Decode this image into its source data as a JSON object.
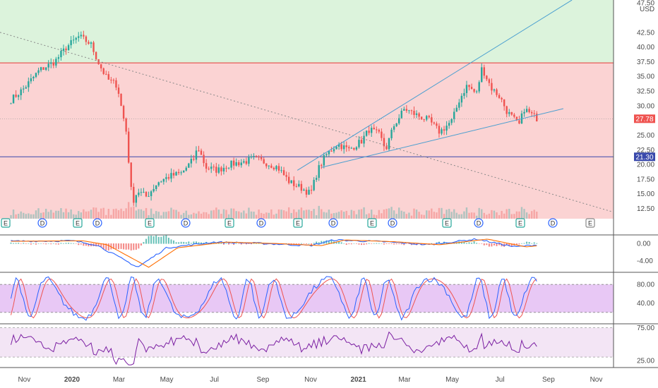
{
  "currency": "USD",
  "colors": {
    "up": "#26a69a",
    "down": "#ef5350",
    "resistance_zone": "#dcf3dc",
    "support_zone": "#fbd3d3",
    "resistance_line": "#e53935",
    "hline": "#3949ab",
    "trend": "#4a9fd0",
    "macd": "#2962ff",
    "signal": "#ff6d00",
    "stoch_k": "#2962ff",
    "stoch_d": "#ef5350",
    "stoch_band": "#e8c8f5",
    "rsi": "#7b1fa2",
    "rsi_band": "#f3e5f5",
    "last_price_label": "#ef5350",
    "hline_label": "#3949ab"
  },
  "time_axis": [
    "Nov",
    "2020",
    "Mar",
    "May",
    "Jul",
    "Sep",
    "Nov",
    "2021",
    "Mar",
    "May",
    "Jul",
    "Sep",
    "Nov"
  ],
  "price_axis": [
    "47.50",
    "42.50",
    "40.00",
    "37.50",
    "35.00",
    "32.50",
    "30.00",
    "25.00",
    "22.50",
    "20.00",
    "17.50",
    "15.00",
    "12.50"
  ],
  "last_price": "27.78",
  "hline_price": "21.30",
  "macd_axis": [
    "0.00",
    "-4.00"
  ],
  "stoch_axis": [
    "80.00",
    "40.00"
  ],
  "rsi_axis": [
    "75.00",
    "25.00"
  ],
  "event_markers": [
    "E",
    "D",
    "E",
    "D",
    "E",
    "D",
    "E",
    "D",
    "E",
    "D",
    "E",
    "D",
    "E",
    "D",
    "E",
    "D",
    "E"
  ],
  "chart_data": {
    "type": "candlestick",
    "x_start": "2019-10",
    "x_end": "2021-11",
    "ylim": [
      11,
      47.5
    ],
    "resistance_price": 37.3,
    "hline_price": 21.3,
    "last_price": 27.78,
    "price_path": [
      [
        "2019-10-15",
        31.0
      ],
      [
        "2019-11-01",
        33.0
      ],
      [
        "2019-11-20",
        36.0
      ],
      [
        "2019-12-10",
        37.5
      ],
      [
        "2019-12-25",
        40.0
      ],
      [
        "2020-01-10",
        41.8
      ],
      [
        "2020-01-25",
        40.5
      ],
      [
        "2020-02-05",
        37.0
      ],
      [
        "2020-02-15",
        34.5
      ],
      [
        "2020-02-28",
        33.5
      ],
      [
        "2020-03-05",
        29.0
      ],
      [
        "2020-03-10",
        26.0
      ],
      [
        "2020-03-18",
        13.5
      ],
      [
        "2020-03-25",
        15.5
      ],
      [
        "2020-04-05",
        14.5
      ],
      [
        "2020-04-20",
        17.0
      ],
      [
        "2020-05-05",
        18.0
      ],
      [
        "2020-05-20",
        18.5
      ],
      [
        "2020-06-05",
        21.0
      ],
      [
        "2020-06-10",
        23.0
      ],
      [
        "2020-06-20",
        19.5
      ],
      [
        "2020-07-05",
        19.0
      ],
      [
        "2020-07-20",
        20.0
      ],
      [
        "2020-08-10",
        20.5
      ],
      [
        "2020-08-20",
        21.0
      ],
      [
        "2020-09-01",
        20.5
      ],
      [
        "2020-09-20",
        19.5
      ],
      [
        "2020-10-05",
        17.0
      ],
      [
        "2020-10-20",
        16.0
      ],
      [
        "2020-11-01",
        15.0
      ],
      [
        "2020-11-10",
        19.0
      ],
      [
        "2020-11-20",
        21.5
      ],
      [
        "2020-12-05",
        23.5
      ],
      [
        "2020-12-20",
        22.5
      ],
      [
        "2021-01-05",
        24.0
      ],
      [
        "2021-01-15",
        26.0
      ],
      [
        "2021-01-28",
        25.0
      ],
      [
        "2021-02-05",
        22.5
      ],
      [
        "2021-02-15",
        26.5
      ],
      [
        "2021-03-01",
        29.5
      ],
      [
        "2021-03-15",
        28.5
      ],
      [
        "2021-04-01",
        27.5
      ],
      [
        "2021-04-15",
        25.5
      ],
      [
        "2021-05-01",
        27.5
      ],
      [
        "2021-05-10",
        31.0
      ],
      [
        "2021-05-20",
        33.5
      ],
      [
        "2021-06-01",
        32.0
      ],
      [
        "2021-06-08",
        36.5
      ],
      [
        "2021-06-20",
        33.0
      ],
      [
        "2021-07-01",
        31.5
      ],
      [
        "2021-07-10",
        29.0
      ],
      [
        "2021-07-20",
        27.5
      ],
      [
        "2021-07-25",
        26.5
      ],
      [
        "2021-08-01",
        29.5
      ],
      [
        "2021-08-10",
        28.5
      ],
      [
        "2021-08-18",
        27.8
      ]
    ],
    "trendlines": [
      {
        "name": "descending-dotted",
        "from": [
          "2019-10-01",
          42.5
        ],
        "to": [
          "2021-11-20",
          12.0
        ],
        "style": "dotted"
      },
      {
        "name": "channel-upper",
        "from": [
          "2020-10-15",
          19.0
        ],
        "to": [
          "2021-10-01",
          48.0
        ],
        "style": "solid"
      },
      {
        "name": "channel-lower",
        "from": [
          "2020-11-15",
          19.5
        ],
        "to": [
          "2021-09-20",
          29.5
        ],
        "style": "solid"
      }
    ],
    "indicators": {
      "macd": {
        "ylim": [
          -6.5,
          1.8
        ],
        "path": [
          [
            "2019-10",
            0.5
          ],
          [
            "2020-01",
            0.6
          ],
          [
            "2020-02",
            -0.3
          ],
          [
            "2020-03-25",
            -5.5
          ],
          [
            "2020-05",
            -1.0
          ],
          [
            "2020-07",
            0.3
          ],
          [
            "2020-09",
            0.0
          ],
          [
            "2020-11",
            -0.5
          ],
          [
            "2020-12",
            0.8
          ],
          [
            "2021-02",
            0.4
          ],
          [
            "2021-04",
            -0.3
          ],
          [
            "2021-06",
            1.0
          ],
          [
            "2021-07-20",
            -0.8
          ],
          [
            "2021-08-18",
            -0.3
          ]
        ]
      },
      "stoch": {
        "ylim": [
          0,
          100
        ],
        "band": [
          20,
          80
        ]
      },
      "rsi": {
        "ylim": [
          15,
          80
        ],
        "band": [
          30,
          75
        ]
      }
    }
  }
}
